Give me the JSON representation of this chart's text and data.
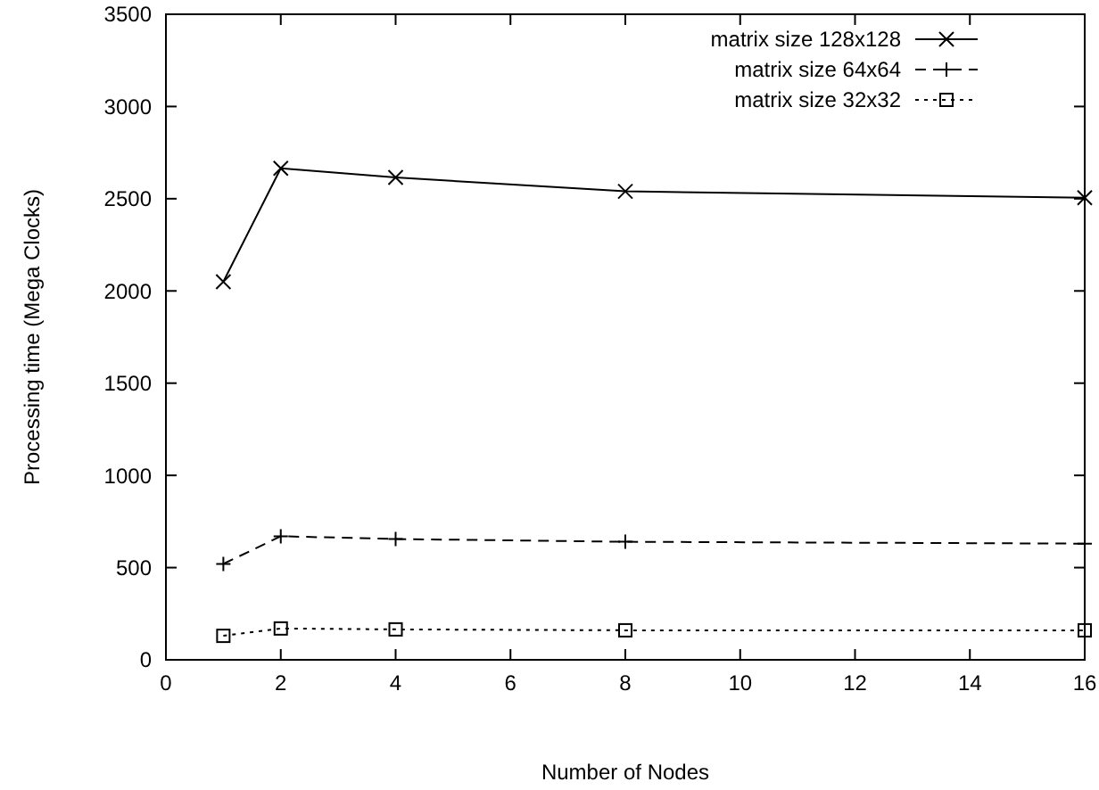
{
  "chart_data": {
    "type": "line",
    "xlabel": "Number of Nodes",
    "ylabel": "Processing time (Mega Clocks)",
    "x": [
      1,
      2,
      4,
      8,
      16
    ],
    "series": [
      {
        "name": "matrix size 128x128",
        "color": "#000000",
        "values": [
          2050,
          2665,
          2615,
          2540,
          2505
        ],
        "marker": "cross",
        "line_style": "solid"
      },
      {
        "name": "matrix size 64x64",
        "color": "#000000",
        "values": [
          520,
          670,
          655,
          640,
          630
        ],
        "marker": "plus",
        "line_style": "dashed"
      },
      {
        "name": "matrix size 32x32",
        "color": "#000000",
        "values": [
          130,
          170,
          165,
          160,
          160
        ],
        "marker": "square",
        "line_style": "dotted"
      }
    ],
    "xlim": [
      0,
      16
    ],
    "xticks": [
      0,
      2,
      4,
      6,
      8,
      10,
      12,
      14,
      16
    ],
    "ylim": [
      0,
      3500
    ],
    "yticks": [
      0,
      500,
      1000,
      1500,
      2000,
      2500,
      3000,
      3500
    ],
    "grid": false,
    "legend": "top right"
  }
}
